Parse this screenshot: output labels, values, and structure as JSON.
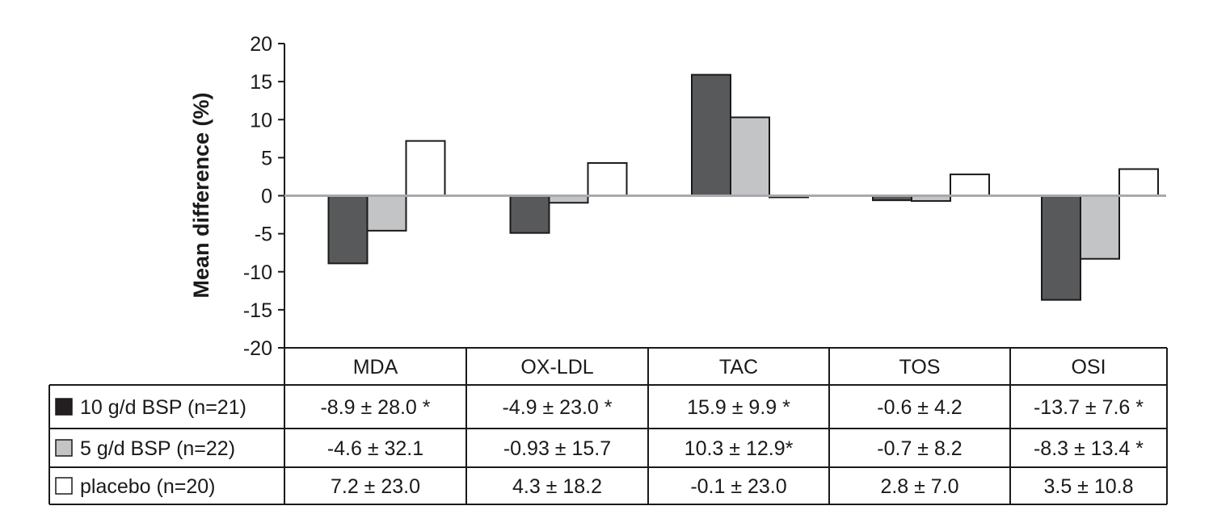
{
  "chart_data": {
    "type": "bar",
    "ylabel": "Mean difference (%)",
    "ylim": [
      -20,
      20
    ],
    "yticks": [
      20,
      15,
      10,
      5,
      0,
      -5,
      -10,
      -15,
      -20
    ],
    "categories": [
      "MDA",
      "OX-LDL",
      "TAC",
      "TOS",
      "OSI"
    ],
    "series": [
      {
        "name": "10 g/d BSP (n=21)",
        "color": "#58595b",
        "values": [
          -8.9,
          -4.9,
          15.9,
          -0.6,
          -13.7
        ],
        "table_values": [
          "-8.9 ± 28.0 *",
          "-4.9 ± 23.0 *",
          "15.9 ± 9.9 *",
          "-0.6 ± 4.2",
          "-13.7 ± 7.6 *"
        ]
      },
      {
        "name": "5 g/d BSP (n=22)",
        "color": "#c3c4c6",
        "values": [
          -4.6,
          -0.93,
          10.3,
          -0.7,
          -8.3
        ],
        "table_values": [
          "-4.6 ± 32.1",
          "-0.93 ± 15.7",
          "10.3 ± 12.9*",
          "-0.7 ± 8.2",
          "-8.3 ± 13.4 *"
        ]
      },
      {
        "name": "placebo (n=20)",
        "color": "#ffffff",
        "values": [
          7.2,
          4.3,
          -0.1,
          2.8,
          3.5
        ],
        "table_values": [
          "7.2 ± 23.0",
          "4.3 ± 18.2",
          "-0.1 ± 23.0",
          "2.8 ± 7.0",
          "3.5 ± 10.8"
        ]
      }
    ],
    "grid": false,
    "zero_line_color": "#a7a9ac",
    "legend": "table rows below chart"
  }
}
